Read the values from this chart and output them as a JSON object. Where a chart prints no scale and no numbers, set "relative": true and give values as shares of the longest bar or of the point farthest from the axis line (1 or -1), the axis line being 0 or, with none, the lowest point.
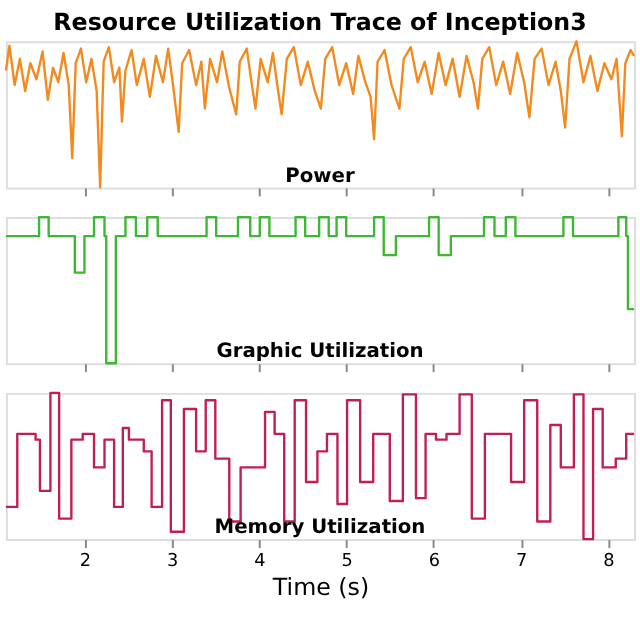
{
  "chart_data": [
    {
      "type": "line",
      "title": "Resource Utilization Trace of Inception3",
      "annotations": [
        "Power"
      ],
      "relative": true,
      "xlim": [
        1.1,
        8.3
      ],
      "xticks": [
        2,
        3,
        4,
        5,
        6,
        7,
        8
      ],
      "tick_labels": false,
      "grid": false,
      "series": [
        {
          "color": "#f28a1e",
          "x": [
            1.1,
            1.14,
            1.2,
            1.26,
            1.32,
            1.38,
            1.45,
            1.52,
            1.58,
            1.64,
            1.7,
            1.76,
            1.82,
            1.86,
            1.9,
            1.96,
            2.02,
            2.08,
            2.14,
            2.18,
            2.22,
            2.28,
            2.34,
            2.4,
            2.43,
            2.47,
            2.54,
            2.6,
            2.68,
            2.75,
            2.82,
            2.9,
            2.96,
            3.02,
            3.08,
            3.12,
            3.2,
            3.28,
            3.34,
            3.38,
            3.44,
            3.52,
            3.58,
            3.66,
            3.74,
            3.78,
            3.86,
            3.92,
            3.96,
            4.02,
            4.1,
            4.16,
            4.22,
            4.26,
            4.32,
            4.4,
            4.48,
            4.56,
            4.64,
            4.71,
            4.76,
            4.84,
            4.92,
            5.0,
            5.08,
            5.14,
            5.22,
            5.28,
            5.32,
            5.36,
            5.44,
            5.52,
            5.61,
            5.66,
            5.74,
            5.82,
            5.9,
            5.98,
            6.06,
            6.14,
            6.22,
            6.3,
            6.38,
            6.46,
            6.51,
            6.56,
            6.64,
            6.72,
            6.8,
            6.88,
            6.96,
            7.04,
            7.1,
            7.16,
            7.24,
            7.32,
            7.4,
            7.46,
            7.51,
            7.56,
            7.64,
            7.72,
            7.8,
            7.88,
            7.96,
            8.04,
            8.1,
            8.16,
            8.2,
            8.26,
            8.3
          ],
          "values": [
            0.8,
            0.97,
            0.7,
            0.88,
            0.66,
            0.85,
            0.74,
            0.93,
            0.6,
            0.82,
            0.72,
            0.92,
            0.7,
            0.2,
            0.85,
            0.95,
            0.72,
            0.88,
            0.66,
            0.0,
            0.86,
            0.96,
            0.72,
            0.82,
            0.45,
            0.8,
            0.94,
            0.7,
            0.88,
            0.62,
            0.9,
            0.72,
            0.95,
            0.68,
            0.38,
            0.85,
            0.94,
            0.7,
            0.86,
            0.54,
            0.88,
            0.72,
            0.93,
            0.68,
            0.5,
            0.86,
            0.95,
            0.7,
            0.54,
            0.88,
            0.72,
            0.92,
            0.66,
            0.5,
            0.88,
            0.96,
            0.7,
            0.86,
            0.66,
            0.54,
            0.88,
            0.96,
            0.7,
            0.85,
            0.64,
            0.9,
            0.72,
            0.62,
            0.33,
            0.86,
            0.94,
            0.7,
            0.54,
            0.88,
            0.96,
            0.72,
            0.86,
            0.64,
            0.92,
            0.7,
            0.88,
            0.62,
            0.9,
            0.72,
            0.54,
            0.88,
            0.96,
            0.7,
            0.86,
            0.64,
            0.92,
            0.72,
            0.48,
            0.88,
            0.95,
            0.7,
            0.86,
            0.66,
            0.41,
            0.88,
            1.0,
            0.72,
            0.9,
            0.66,
            0.85,
            0.74,
            0.88,
            0.35,
            0.85,
            0.94,
            0.9
          ]
        }
      ]
    },
    {
      "type": "step",
      "annotations": [
        "Graphic Utilization"
      ],
      "relative": true,
      "xlim": [
        1.1,
        8.3
      ],
      "xticks": [
        2,
        3,
        4,
        5,
        6,
        7,
        8
      ],
      "tick_labels": false,
      "grid": false,
      "series": [
        {
          "color": "#3cb832",
          "x": [
            1.1,
            1.48,
            1.59,
            1.89,
            2.0,
            2.11,
            2.23,
            2.25,
            2.36,
            2.47,
            2.59,
            2.72,
            2.84,
            3.4,
            3.51,
            3.76,
            3.9,
            4.01,
            4.12,
            4.42,
            4.53,
            4.69,
            4.8,
            4.89,
            5.0,
            5.32,
            5.43,
            5.57,
            5.95,
            6.06,
            6.2,
            6.58,
            6.7,
            6.83,
            6.94,
            7.49,
            7.6,
            8.12,
            8.21,
            8.23,
            8.3
          ],
          "values": [
            0.87,
            1.0,
            0.87,
            0.62,
            0.87,
            1.0,
            0.87,
            0.0,
            0.87,
            1.0,
            0.87,
            1.0,
            0.87,
            1.0,
            0.87,
            1.0,
            0.87,
            1.0,
            0.87,
            1.0,
            0.87,
            1.0,
            0.87,
            1.0,
            0.87,
            1.0,
            0.74,
            0.87,
            1.0,
            0.74,
            0.87,
            1.0,
            0.87,
            1.0,
            0.87,
            1.0,
            0.87,
            1.0,
            0.87,
            0.37,
            0.37
          ]
        }
      ]
    },
    {
      "type": "step",
      "annotations": [
        "Memory Utilization"
      ],
      "xlabel": "Time (s)",
      "relative": true,
      "xlim": [
        1.1,
        8.3
      ],
      "xticks": [
        2,
        3,
        4,
        5,
        6,
        7,
        8
      ],
      "tick_labels": "x",
      "grid": false,
      "series": [
        {
          "color": "#c21e56",
          "x": [
            1.1,
            1.23,
            1.44,
            1.49,
            1.61,
            1.71,
            1.85,
            1.98,
            2.11,
            2.23,
            2.34,
            2.44,
            2.51,
            2.68,
            2.77,
            2.89,
            2.99,
            3.14,
            3.28,
            3.39,
            3.5,
            3.66,
            3.79,
            4.07,
            4.18,
            4.29,
            4.41,
            4.54,
            4.67,
            4.78,
            4.9,
            5.01,
            5.16,
            5.31,
            5.5,
            5.65,
            5.8,
            5.91,
            6.03,
            6.15,
            6.3,
            6.44,
            6.59,
            6.89,
            7.04,
            7.19,
            7.34,
            7.46,
            7.61,
            7.72,
            7.83,
            7.94,
            8.09,
            8.21,
            8.3
          ],
          "values": [
            0.22,
            0.72,
            0.68,
            0.33,
            1.0,
            0.14,
            0.68,
            0.72,
            0.49,
            0.68,
            0.22,
            0.76,
            0.68,
            0.6,
            0.22,
            0.95,
            0.05,
            0.89,
            0.6,
            0.95,
            0.55,
            0.12,
            0.49,
            0.87,
            0.72,
            0.12,
            0.95,
            0.39,
            0.6,
            0.72,
            0.24,
            0.95,
            0.39,
            0.72,
            0.26,
            0.99,
            0.28,
            0.72,
            0.68,
            0.72,
            0.99,
            0.14,
            0.72,
            0.39,
            0.95,
            0.12,
            0.78,
            0.49,
            0.99,
            0.0,
            0.89,
            0.49,
            0.55,
            0.72,
            0.72
          ]
        }
      ]
    }
  ]
}
